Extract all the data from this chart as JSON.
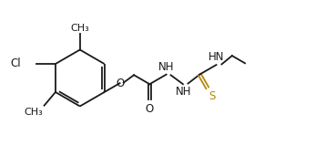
{
  "bg_color": "#ffffff",
  "bond_color": "#1a1a1a",
  "sulfur_color": "#b8860b",
  "line_width": 1.3,
  "font_size": 8.5,
  "figsize": [
    3.68,
    1.71
  ],
  "dpi": 100,
  "xlim": [
    0,
    11
  ],
  "ylim": [
    0,
    5.2
  ]
}
